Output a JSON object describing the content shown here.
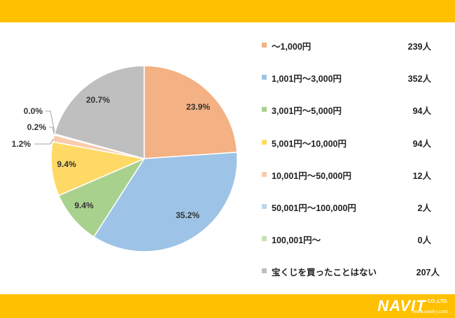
{
  "chart_data": {
    "type": "pie",
    "title": "",
    "colors": [
      "#F4B183",
      "#9DC3E6",
      "#A9D18E",
      "#FFD966",
      "#F8CBAD",
      "#BDD7EE",
      "#C5E0B4",
      "#BFBFBF"
    ],
    "slices": [
      {
        "label": "～1,000円",
        "count": "239人",
        "value": 23.9,
        "pct_label": "23.9%"
      },
      {
        "label": "1,001円～3,000円",
        "count": "352人",
        "value": 35.2,
        "pct_label": "35.2%"
      },
      {
        "label": "3,001円～5,000円",
        "count": "94人",
        "value": 9.4,
        "pct_label": "9.4%"
      },
      {
        "label": "5,001円～10,000円",
        "count": "94人",
        "value": 9.4,
        "pct_label": "9.4%"
      },
      {
        "label": "10,001円～50,000円",
        "count": "12人",
        "value": 1.2,
        "pct_label": "1.2%"
      },
      {
        "label": "50,001円～100,000円",
        "count": "2人",
        "value": 0.2,
        "pct_label": "0.2%"
      },
      {
        "label": "100,001円～",
        "count": "0人",
        "value": 0.0,
        "pct_label": "0.0%"
      },
      {
        "label": "宝くじを買ったことはない",
        "count": "207人",
        "value": 20.7,
        "pct_label": "20.7%"
      }
    ],
    "legend_position": "right"
  },
  "brand": {
    "logo": "NAVIT",
    "company_suffix": "CO.,LTD.",
    "url": "www.navit-j.com"
  }
}
